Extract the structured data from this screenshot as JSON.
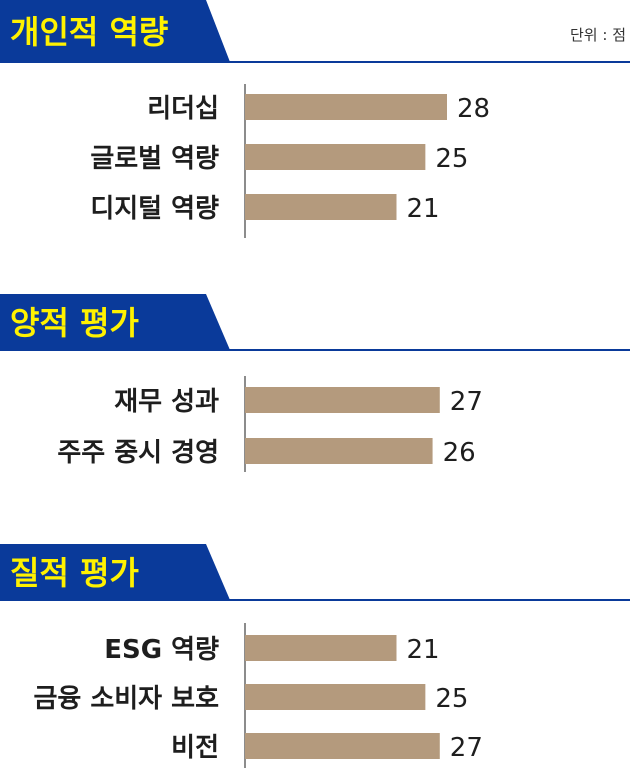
{
  "unit_label": "단위 : 점",
  "colors": {
    "banner": "#0a3a9a",
    "banner_text": "#fff200",
    "bar": "#b49a7d",
    "axis": "#666666",
    "rule": "#0a3a9a"
  },
  "chart_data": [
    {
      "type": "bar",
      "orientation": "horizontal",
      "title": "개인적 역량",
      "categories": [
        "리더십",
        "글로벌 역량",
        "디지털 역량"
      ],
      "values": [
        28,
        25,
        21
      ]
    },
    {
      "type": "bar",
      "orientation": "horizontal",
      "title": "양적 평가",
      "categories": [
        "재무 성과",
        "주주 중시 경영"
      ],
      "values": [
        27,
        26
      ]
    },
    {
      "type": "bar",
      "orientation": "horizontal",
      "title": "질적 평가",
      "categories": [
        "ESG 역량",
        "금융 소비자 보호",
        "비전"
      ],
      "values": [
        21,
        25,
        27
      ]
    }
  ]
}
